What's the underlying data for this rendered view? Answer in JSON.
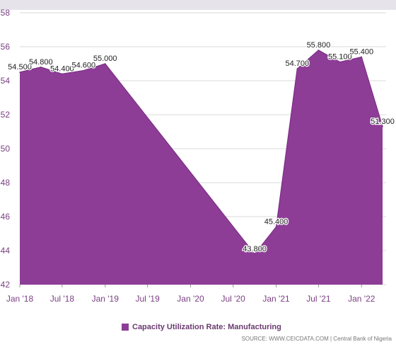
{
  "chart_data": {
    "type": "area",
    "series": [
      {
        "name": "Capacity Utilization Rate: Manufacturing",
        "color": "#8e3d97",
        "points": [
          {
            "x": "2018-01",
            "y": 54.5
          },
          {
            "x": "2018-04",
            "y": 54.8
          },
          {
            "x": "2018-07",
            "y": 54.4
          },
          {
            "x": "2018-10",
            "y": 54.6
          },
          {
            "x": "2019-01",
            "y": 55.0
          },
          {
            "x": "2020-10",
            "y": 43.8
          },
          {
            "x": "2021-01",
            "y": 45.4
          },
          {
            "x": "2021-04",
            "y": 54.7
          },
          {
            "x": "2021-07",
            "y": 55.8
          },
          {
            "x": "2021-10",
            "y": 55.1
          },
          {
            "x": "2022-01",
            "y": 55.4
          },
          {
            "x": "2022-04",
            "y": 51.3
          }
        ]
      }
    ],
    "data_labels": [
      "54.500",
      "54.800",
      "54.400",
      "54.600",
      "55.000",
      "43.800",
      "45.400",
      "54.700",
      "55.800",
      "55.100",
      "55.400",
      "51.300"
    ],
    "x_ticks": [
      "Jan '18",
      "Jul '18",
      "Jan '19",
      "Jul '19",
      "Jan '20",
      "Jul '20",
      "Jan '21",
      "Jul '21",
      "Jan '22"
    ],
    "y_ticks": [
      "42",
      "44",
      "46",
      "48",
      "50",
      "52",
      "54",
      "56",
      "58"
    ],
    "ylim": [
      42,
      58
    ],
    "grid": true,
    "legend_position": "bottom"
  },
  "source": "SOURCE: WWW.CEICDATA.COM | Central Bank of Nigeria",
  "colors": {
    "area": "#8e3d97",
    "grid": "#d9d9d9",
    "tick_text": "#7a3f82"
  }
}
